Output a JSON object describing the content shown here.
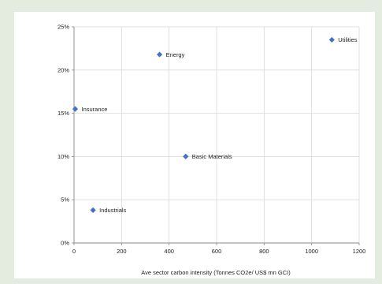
{
  "chart_data": {
    "type": "scatter",
    "title": "",
    "xlabel": "Ave sector carbon intensity (Tonnes CO2e/ US$ mn GCI)",
    "ylabel": "",
    "xlim": [
      0,
      1200
    ],
    "ylim": [
      0,
      25
    ],
    "x_ticks": [
      "0",
      "200",
      "400",
      "600",
      "800",
      "1000",
      "1200"
    ],
    "y_ticks": [
      "0%",
      "5%",
      "10%",
      "15%",
      "20%",
      "25%"
    ],
    "grid": true,
    "marker_color": "#4472c4",
    "points": [
      {
        "label": "Utilities",
        "x": 1085,
        "y": 23.5
      },
      {
        "label": "Energy",
        "x": 360,
        "y": 21.8
      },
      {
        "label": "Insurance",
        "x": 5,
        "y": 15.5
      },
      {
        "label": "Basic Materials",
        "x": 470,
        "y": 10.0
      },
      {
        "label": "Industrials",
        "x": 80,
        "y": 3.8
      }
    ]
  }
}
